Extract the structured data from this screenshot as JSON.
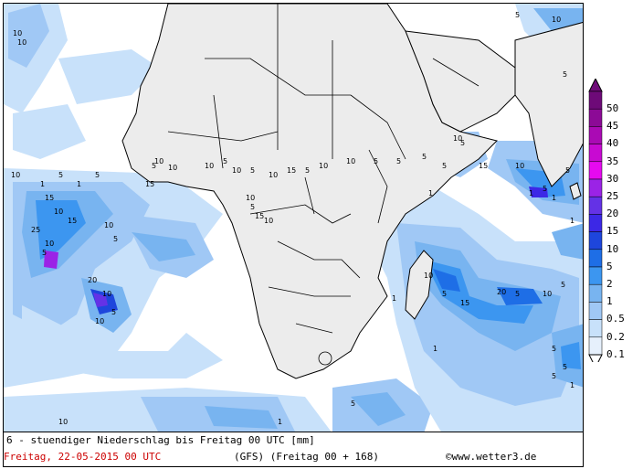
{
  "map": {
    "region": "Africa / South Atlantic / Indian Ocean",
    "land_color": "#ececec",
    "border_color": "#000000",
    "contour_labels": [
      "10",
      "10",
      "10",
      "5",
      "5",
      "10",
      "5",
      "1",
      "1",
      "5",
      "15",
      "10",
      "25",
      "10",
      "5",
      "15",
      "10",
      "5",
      "20",
      "10",
      "5",
      "10",
      "15",
      "10",
      "5",
      "10",
      "10",
      "5",
      "10",
      "5",
      "10",
      "15",
      "5",
      "10",
      "10",
      "5",
      "15",
      "10",
      "10",
      "5",
      "5",
      "5",
      "1",
      "5",
      "10",
      "5",
      "15",
      "10",
      "1",
      "5",
      "1",
      "5",
      "10",
      "5",
      "15",
      "20",
      "5",
      "10",
      "5",
      "1",
      "1",
      "1",
      "5",
      "5",
      "5",
      "1",
      "10",
      "5",
      "1"
    ]
  },
  "footer": {
    "caption": "6 - stuendiger Niederschlag bis Freitag 00 UTC [mm]",
    "date": "Freitag, 22-05-2015  00 UTC",
    "model": "(GFS)  (Freitag 00 + 168)",
    "credit": "©www.wetter3.de"
  },
  "legend": {
    "levels": [
      {
        "label": "50",
        "color": "#6e0a78"
      },
      {
        "label": "45",
        "color": "#8c0a96"
      },
      {
        "label": "40",
        "color": "#aa0ab4"
      },
      {
        "label": "35",
        "color": "#c80ad2"
      },
      {
        "label": "30",
        "color": "#e60af0"
      },
      {
        "label": "25",
        "color": "#9b23e6"
      },
      {
        "label": "20",
        "color": "#6432e6"
      },
      {
        "label": "15",
        "color": "#3c28e6"
      },
      {
        "label": "10",
        "color": "#1e46dc"
      },
      {
        "label": "5",
        "color": "#1e6ee6"
      },
      {
        "label": "2",
        "color": "#3c96f0"
      },
      {
        "label": "1",
        "color": "#78b4f0"
      },
      {
        "label": "0.5",
        "color": "#a0c8f5"
      },
      {
        "label": "0.2",
        "color": "#c8e1fa"
      },
      {
        "label": "0.1",
        "color": "#e6f0fc"
      }
    ]
  }
}
